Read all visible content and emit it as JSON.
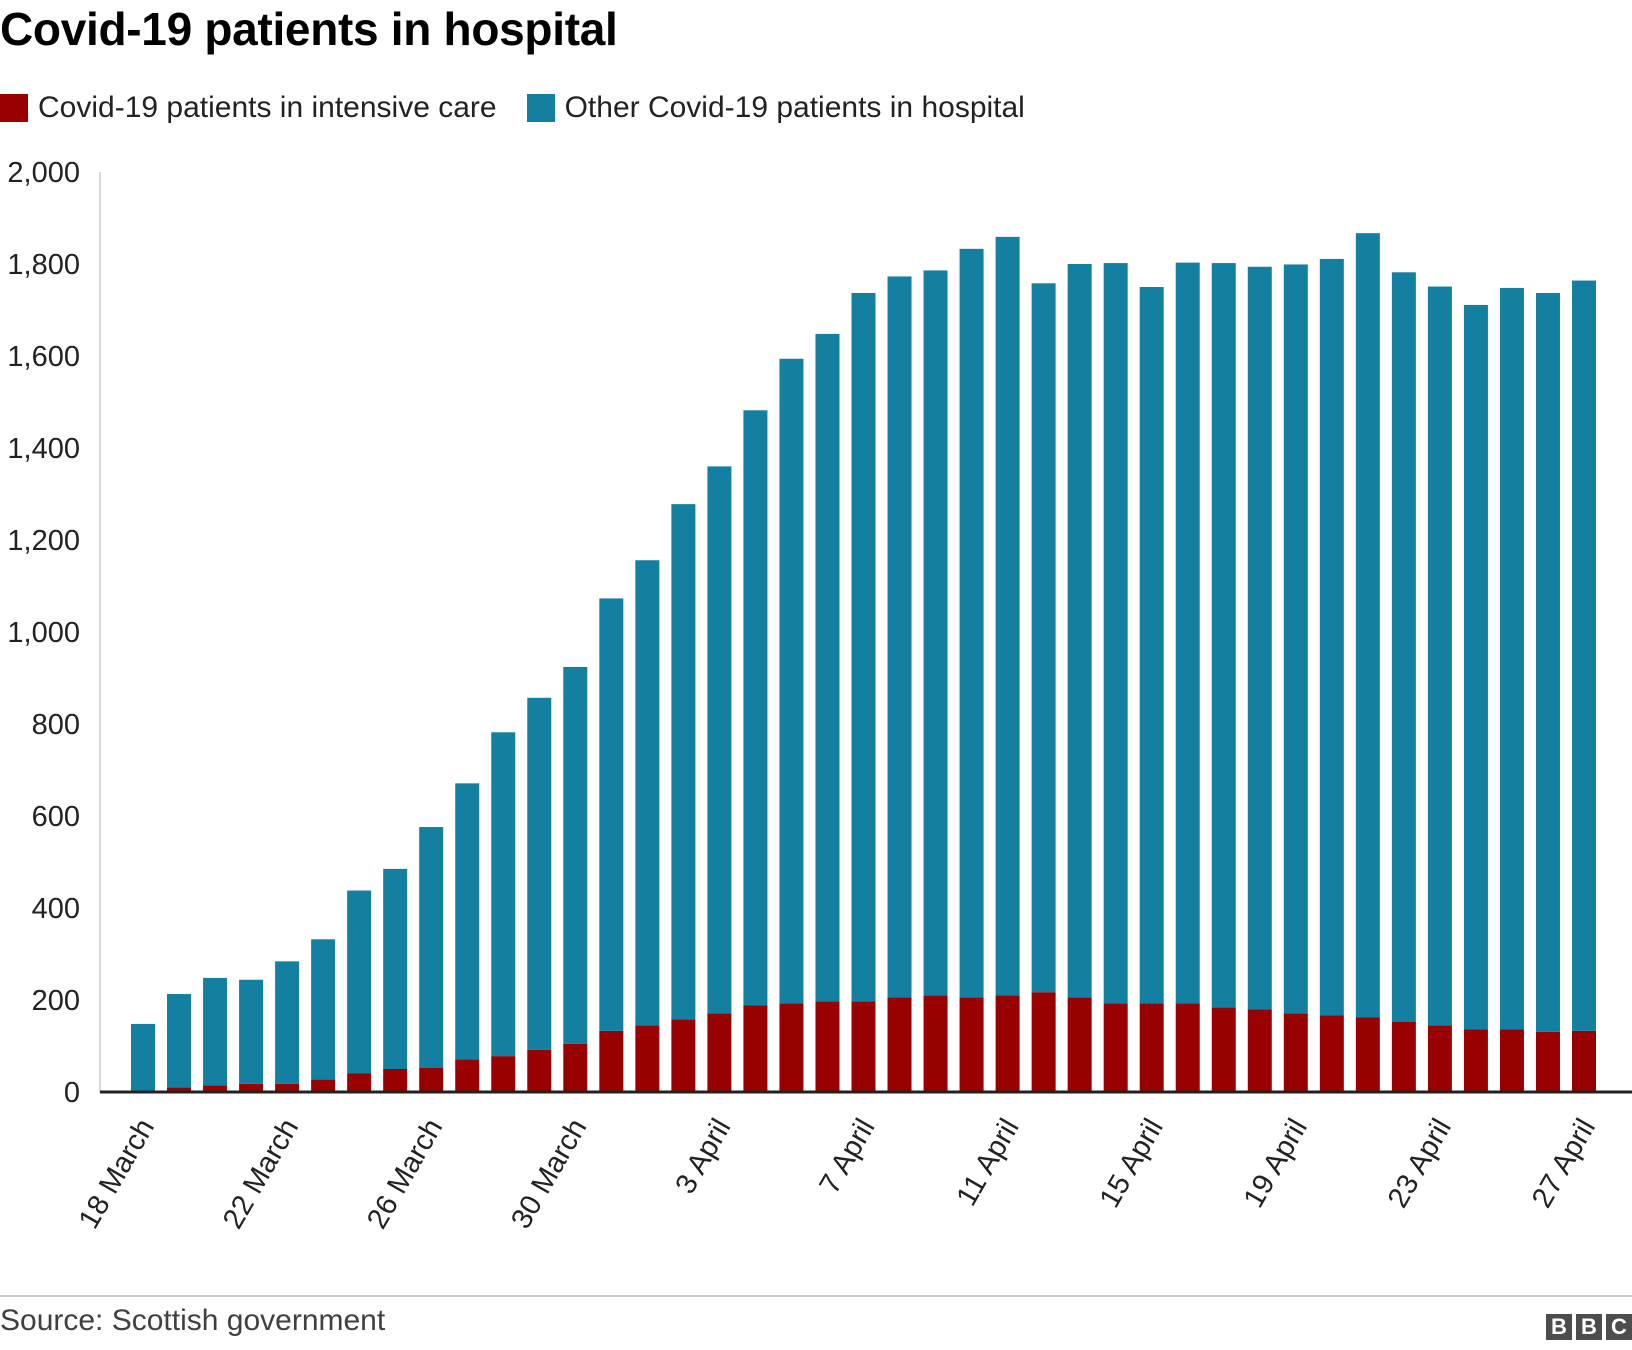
{
  "title": "Covid-19 patients in hospital",
  "legend": [
    {
      "label": "Covid-19 patients in intensive care",
      "color": "#990000"
    },
    {
      "label": "Other Covid-19 patients in hospital",
      "color": "#1380A1"
    }
  ],
  "source": "Source: Scottish government",
  "logo": [
    "B",
    "B",
    "C"
  ],
  "chart_data": {
    "type": "bar",
    "stacked": true,
    "grid": false,
    "legend_position": "top-left",
    "ylim": [
      0,
      2000
    ],
    "y_ticks": [
      0,
      200,
      400,
      600,
      800,
      1000,
      1200,
      1400,
      1600,
      1800,
      2000
    ],
    "y_tick_labels": [
      "0",
      "200",
      "400",
      "600",
      "800",
      "1,000",
      "1,200",
      "1,400",
      "1,600",
      "1,800",
      "2,000"
    ],
    "categories": [
      "18 March",
      "19 March",
      "20 March",
      "21 March",
      "22 March",
      "23 March",
      "24 March",
      "25 March",
      "26 March",
      "27 March",
      "28 March",
      "29 March",
      "30 March",
      "31 March",
      "1 April",
      "2 April",
      "3 April",
      "4 April",
      "5 April",
      "6 April",
      "7 April",
      "8 April",
      "9 April",
      "10 April",
      "11 April",
      "12 April",
      "13 April",
      "14 April",
      "15 April",
      "16 April",
      "17 April",
      "18 April",
      "19 April",
      "20 April",
      "21 April",
      "22 April",
      "23 April",
      "24 April",
      "25 April",
      "26 April",
      "27 April"
    ],
    "x_tick_labels": [
      "18 March",
      "22 March",
      "26 March",
      "30 March",
      "3 April",
      "7 April",
      "11 April",
      "15 April",
      "19 April",
      "23 April",
      "27 April"
    ],
    "series": [
      {
        "name": "Covid-19 patients in intensive care",
        "color": "#990000",
        "values": [
          0,
          10,
          14,
          18,
          18,
          27,
          41,
          50,
          53,
          71,
          78,
          92,
          105,
          133,
          145,
          158,
          171,
          188,
          193,
          197,
          197,
          206,
          210,
          206,
          210,
          217,
          206,
          193,
          193,
          193,
          184,
          180,
          171,
          167,
          162,
          153,
          145,
          136,
          136,
          131,
          133
        ]
      },
      {
        "name": "Other Covid-19 patients in hospital",
        "color": "#1380A1",
        "values": [
          148,
          203,
          234,
          226,
          266,
          305,
          397,
          435,
          523,
          600,
          704,
          765,
          819,
          940,
          1011,
          1120,
          1189,
          1294,
          1401,
          1451,
          1540,
          1567,
          1576,
          1627,
          1649,
          1541,
          1594,
          1609,
          1557,
          1610,
          1618,
          1614,
          1628,
          1644,
          1705,
          1629,
          1606,
          1575,
          1612,
          1606,
          1631
        ]
      }
    ]
  }
}
